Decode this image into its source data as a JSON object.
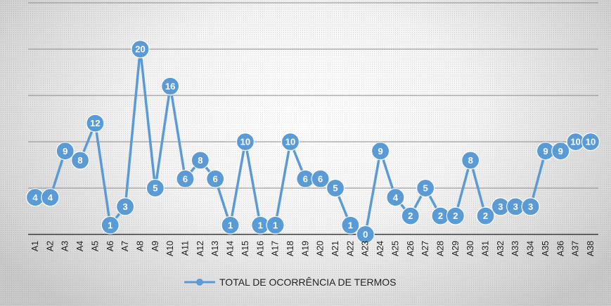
{
  "chart_data": {
    "type": "line",
    "categories": [
      "A1",
      "A2",
      "A3",
      "A4",
      "A5",
      "A6",
      "A7",
      "A8",
      "A9",
      "A10",
      "A11",
      "A12",
      "A13",
      "A14",
      "A15",
      "A16",
      "A17",
      "A18",
      "A19",
      "A20",
      "A21",
      "A22",
      "A23",
      "A24",
      "A25",
      "A26",
      "A27",
      "A28",
      "A29",
      "A30",
      "A31",
      "A32",
      "A33",
      "A34",
      "A35",
      "A36",
      "A37",
      "A38"
    ],
    "series": [
      {
        "name": "TOTAL DE OCORRÊNCIA DE TERMOS",
        "values": [
          4,
          4,
          9,
          8,
          12,
          1,
          3,
          20,
          5,
          16,
          6,
          8,
          6,
          1,
          10,
          1,
          1,
          10,
          6,
          6,
          5,
          1,
          0,
          9,
          4,
          2,
          5,
          2,
          2,
          8,
          2,
          3,
          3,
          3,
          9,
          9,
          10,
          10
        ],
        "color": "#5b9bd5"
      }
    ],
    "ylim": [
      0,
      25
    ],
    "gridlines": [
      0,
      5,
      10,
      15,
      20,
      25
    ],
    "grid": true,
    "legend": "bottom",
    "data_labels": true,
    "title": "",
    "xlabel": "",
    "ylabel": ""
  }
}
